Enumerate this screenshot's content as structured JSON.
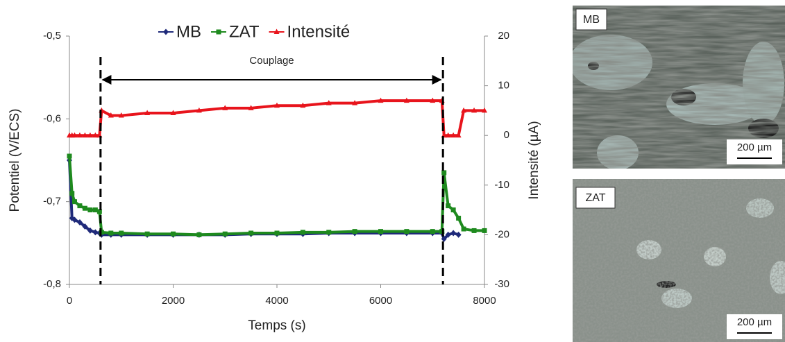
{
  "chart_data": {
    "type": "line",
    "x_label": "Temps (s)",
    "y_label": "Potentiel (V/ECS)",
    "y2_label": "Intensité (µA)",
    "legend": "top",
    "annotation": {
      "text": "Couplage",
      "x_start": 600,
      "x_end": 7200
    },
    "x": [
      0,
      50,
      100,
      200,
      300,
      400,
      500,
      580,
      620,
      800,
      1000,
      1500,
      2000,
      2500,
      3000,
      3500,
      4000,
      4500,
      5000,
      5500,
      6000,
      6500,
      7000,
      7180,
      7220,
      7300,
      7400,
      7500,
      7600,
      7800,
      8000
    ],
    "xlim": [
      0,
      8000
    ],
    "xticks": [
      0,
      2000,
      4000,
      6000,
      8000
    ],
    "ylim": [
      -0.8,
      -0.5
    ],
    "yticks": [
      {
        "value": -0.8,
        "label": "-0,8"
      },
      {
        "value": -0.7,
        "label": "-0,7"
      },
      {
        "value": -0.6,
        "label": "-0,6"
      },
      {
        "value": -0.5,
        "label": "-0,5"
      }
    ],
    "y2lim": [
      -30,
      20
    ],
    "y2ticks": [
      -30,
      -20,
      -10,
      0,
      10,
      20
    ],
    "series": [
      {
        "name": "MB",
        "color": "#1f2a7a",
        "marker": "diamond",
        "values": [
          -0.65,
          -0.72,
          -0.722,
          -0.725,
          -0.73,
          -0.735,
          -0.737,
          -0.738,
          -0.74,
          -0.74,
          -0.74,
          -0.74,
          -0.74,
          -0.74,
          -0.74,
          -0.739,
          -0.739,
          -0.739,
          -0.738,
          -0.738,
          -0.738,
          -0.738,
          -0.738,
          -0.738,
          -0.745,
          -0.74,
          -0.738,
          -0.74,
          null,
          null,
          null
        ]
      },
      {
        "name": "ZAT",
        "color": "#1e8a1e",
        "marker": "square",
        "values": [
          -0.645,
          -0.69,
          -0.7,
          -0.705,
          -0.708,
          -0.71,
          -0.71,
          -0.712,
          -0.737,
          -0.738,
          -0.738,
          -0.739,
          -0.739,
          -0.74,
          -0.739,
          -0.738,
          -0.738,
          -0.737,
          -0.737,
          -0.736,
          -0.736,
          -0.736,
          -0.736,
          -0.736,
          -0.665,
          -0.705,
          -0.71,
          -0.72,
          -0.733,
          -0.735,
          -0.735
        ]
      },
      {
        "name": "Intensité",
        "color": "#e8141c",
        "marker": "triangle",
        "axis": "y2",
        "values": [
          0,
          0,
          0,
          0,
          0,
          0,
          0,
          0,
          5,
          4,
          4,
          4.5,
          4.5,
          5,
          5.5,
          5.5,
          6,
          6,
          6.5,
          6.5,
          7,
          7,
          7,
          7,
          0,
          0,
          0,
          0,
          5,
          5,
          5
        ]
      }
    ]
  },
  "micrographs": [
    {
      "label": "MB",
      "scale_bar": "200 µm"
    },
    {
      "label": "ZAT",
      "scale_bar": "200 µm"
    }
  ]
}
